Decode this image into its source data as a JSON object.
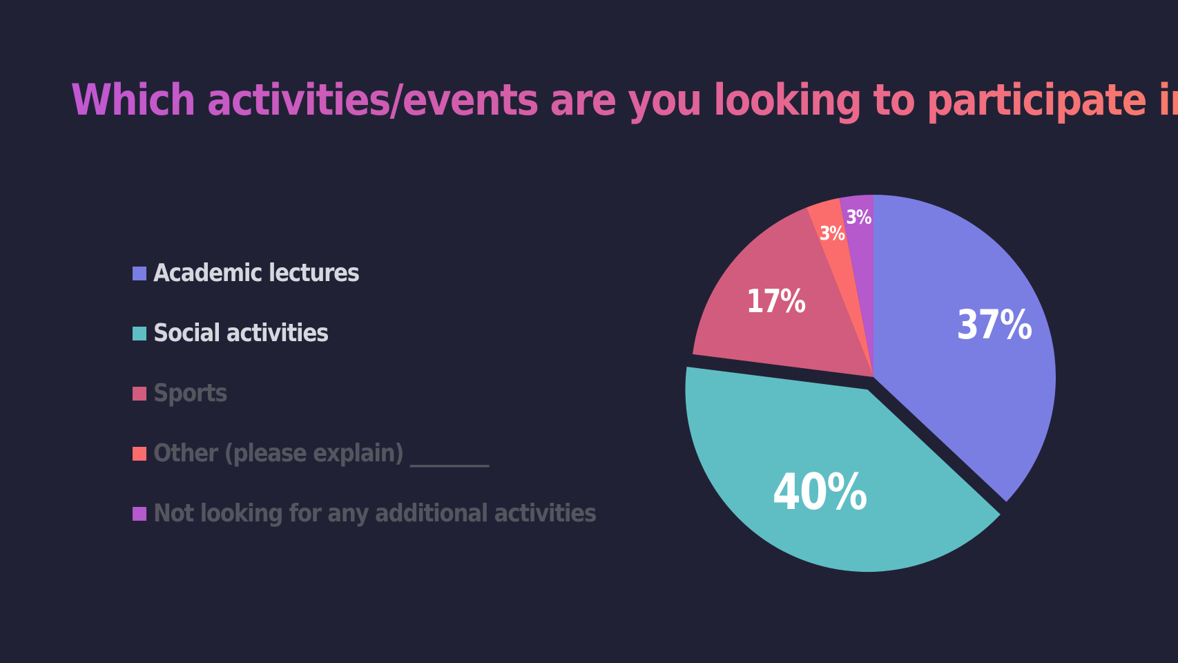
{
  "title": {
    "text": "Which activities/events are you looking to participate in",
    "question_mark": "?"
  },
  "legend": {
    "items": [
      {
        "label": "Academic lectures",
        "state": "active"
      },
      {
        "label": "Social activities",
        "state": "active"
      },
      {
        "label": "Sports",
        "state": "dim"
      },
      {
        "label": "Other (please explain) ________",
        "state": "dim"
      },
      {
        "label": "Not looking for any additional activities",
        "state": "dim"
      }
    ]
  },
  "colors": {
    "background": "#212136",
    "academic": "#7a7ee3",
    "social": "#5fbec4",
    "sports": "#d25c7d",
    "other": "#fb6d6d",
    "none": "#b559cc",
    "title_question_mark": "#fbb05a"
  },
  "chart_data": {
    "type": "pie",
    "categories": [
      "Academic lectures",
      "Social activities",
      "Sports",
      "Other (please explain) ________",
      "Not looking for any additional activities"
    ],
    "values": [
      37,
      40,
      17,
      3,
      3
    ],
    "data_labels": [
      "37%",
      "40%",
      "17%",
      "3%",
      "3%"
    ],
    "exploded": "Social activities",
    "legend": "left"
  }
}
